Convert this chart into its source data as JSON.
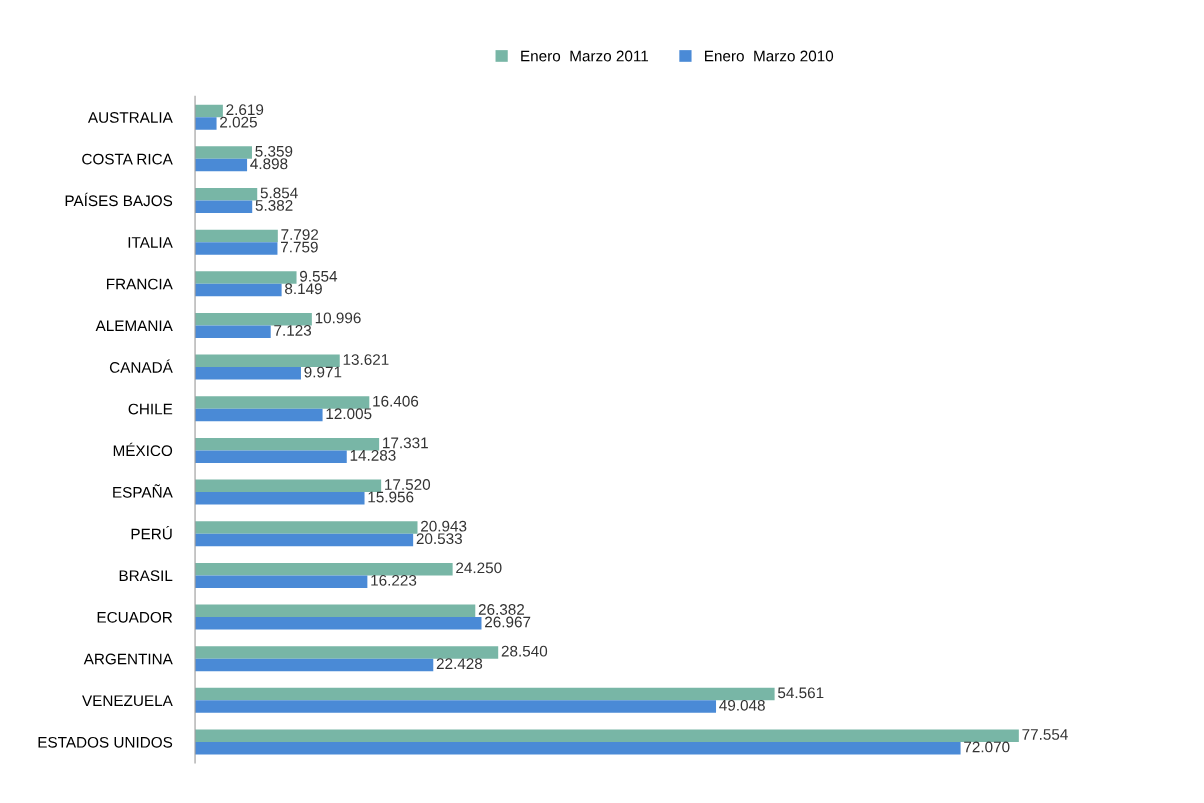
{
  "chart_data": {
    "type": "bar",
    "orientation": "horizontal",
    "legend": "top",
    "tick_labels": "y",
    "categories": [
      "AUSTRALIA",
      "COSTA RICA",
      "PAÍSES BAJOS",
      "ITALIA",
      "FRANCIA",
      "ALEMANIA",
      "CANADÁ",
      "CHILE",
      "MÉXICO",
      "ESPAÑA",
      "PERÚ",
      "BRASIL",
      "ECUADOR",
      "ARGENTINA",
      "VENEZUELA",
      "ESTADOS UNIDOS"
    ],
    "series": [
      {
        "name": "Enero  Marzo 2011",
        "color": "#78b6a6",
        "values": [
          2619,
          5359,
          5854,
          7792,
          9554,
          10996,
          13621,
          16406,
          17331,
          17520,
          20943,
          24250,
          26382,
          28540,
          54561,
          77554
        ],
        "value_labels": [
          "2.619",
          "5.359",
          "5.854",
          "7.792",
          "9.554",
          "10.996",
          "13.621",
          "16.406",
          "17.331",
          "17.520",
          "20.943",
          "24.250",
          "26.382",
          "28.540",
          "54.561",
          "77.554"
        ]
      },
      {
        "name": "Enero  Marzo 2010",
        "color": "#4a8ad6",
        "values": [
          2025,
          4898,
          5382,
          7759,
          8149,
          7123,
          9971,
          12005,
          14283,
          15956,
          20533,
          16223,
          26967,
          22428,
          49048,
          72070
        ],
        "value_labels": [
          "2.025",
          "4.898",
          "5.382",
          "7.759",
          "8.149",
          "7.123",
          "9.971",
          "12.005",
          "14.283",
          "15.956",
          "20.533",
          "16.223",
          "26.967",
          "22.428",
          "49.048",
          "72.070"
        ]
      }
    ]
  }
}
